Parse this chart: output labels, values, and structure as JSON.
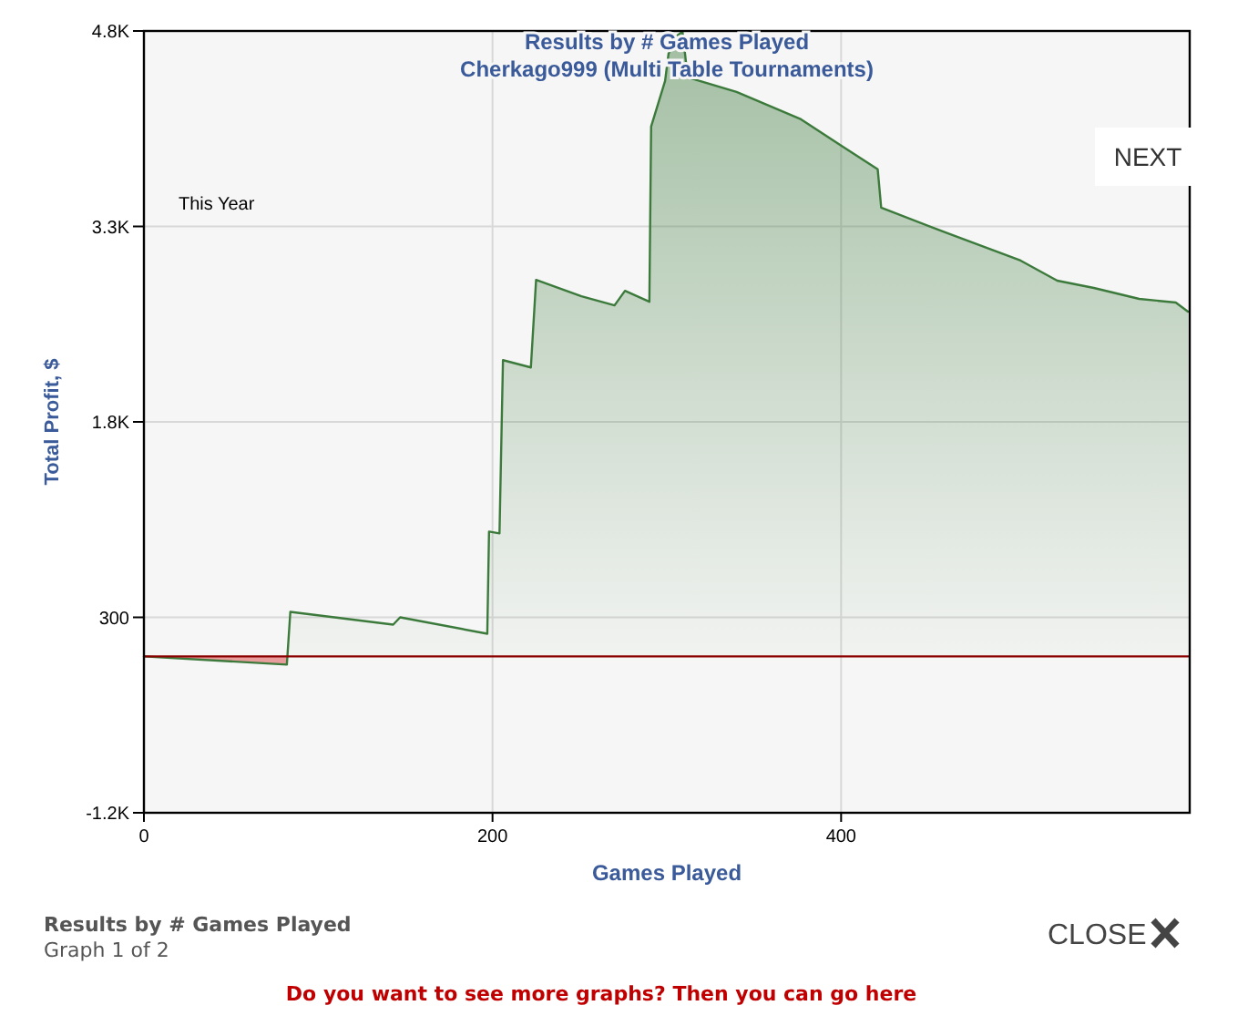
{
  "chart_data": {
    "type": "area",
    "title": "Results by # Games Played",
    "subtitle": "Cherkago999 (Multi Table Tournaments)",
    "xlabel": "Games Played",
    "ylabel": "Total Profit, $",
    "x": [
      0,
      82,
      84,
      143,
      147,
      197,
      198,
      204,
      206,
      222,
      225,
      251,
      270,
      276,
      290,
      291,
      299,
      301,
      306,
      309,
      312,
      340,
      377,
      401,
      421,
      423,
      461,
      503,
      524,
      545,
      571,
      592,
      599
    ],
    "series": [
      {
        "color": "#3c7a3c",
        "values": [
          0,
          -63,
          342,
          244,
          300,
          174,
          958,
          944,
          2274,
          2218,
          2890,
          2764,
          2694,
          2806,
          2722,
          4066,
          4416,
          4626,
          4766,
          4794,
          4444,
          4332,
          4122,
          3912,
          3738,
          3444,
          3248,
          3038,
          2884,
          2828,
          2744,
          2716,
          2646
        ]
      }
    ],
    "xlim": [
      0,
      600
    ],
    "xticks": [
      0,
      200,
      400
    ],
    "ylim": [
      -1200,
      4800
    ],
    "yticks": [
      {
        "value": -1200,
        "label": "-1.2K"
      },
      300,
      {
        "value": 1800,
        "label": "1.8K"
      },
      {
        "value": 3300,
        "label": "3.3K"
      },
      {
        "value": 4800,
        "label": "4.8K"
      }
    ],
    "grid": true,
    "ref_lines": [
      {
        "axis": "y",
        "value": 0,
        "color": "#8b0000"
      }
    ],
    "annotations": [
      "This Year",
      "NEXT",
      "Results by # Games Played",
      "Graph 1 of 2",
      "Do you want to see more graphs? Then you can go here",
      "CLOSE"
    ]
  }
}
